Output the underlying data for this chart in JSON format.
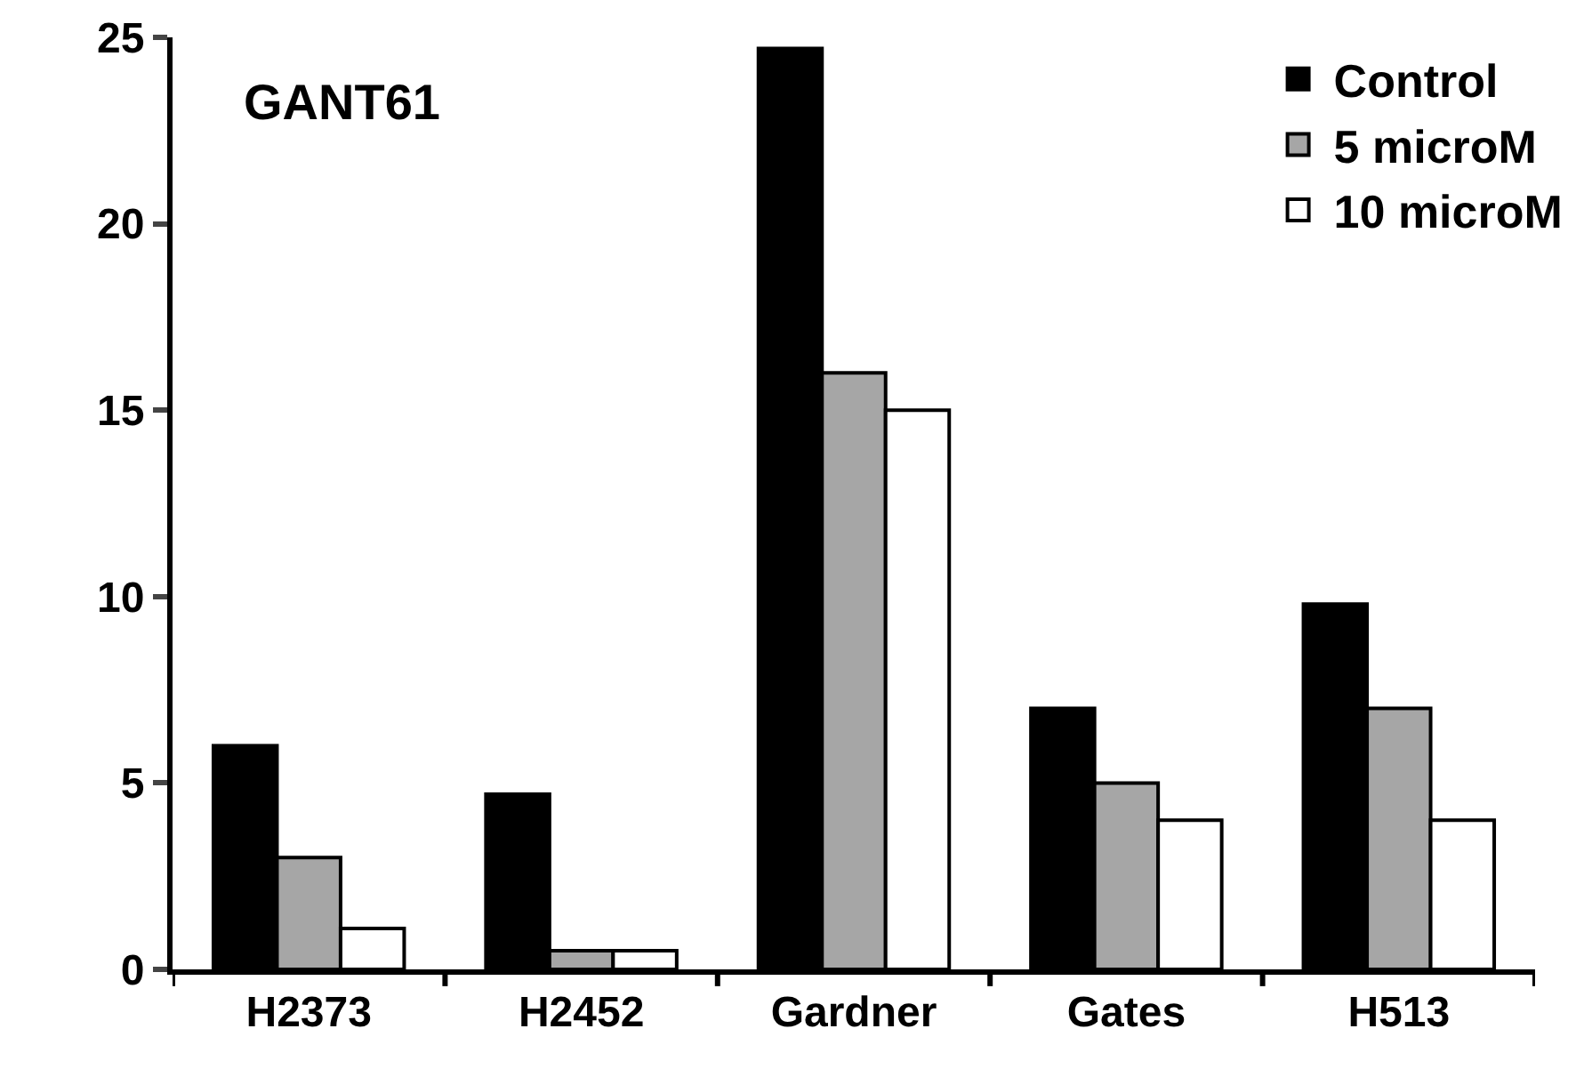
{
  "chart_data": {
    "type": "bar",
    "annotations": [
      "GANT61"
    ],
    "categories": [
      "H2373",
      "H2452",
      "Gardner",
      "Gates",
      "H513"
    ],
    "series": [
      {
        "name": "Control",
        "color": "#000000",
        "values": [
          6.0,
          4.7,
          24.7,
          7.0,
          9.8
        ]
      },
      {
        "name": "5 microM",
        "color": "#a6a6a6",
        "values": [
          3.0,
          0.5,
          16.0,
          5.0,
          7.0
        ]
      },
      {
        "name": "10 microM",
        "color": "#ffffff",
        "values": [
          1.1,
          0.5,
          15.0,
          4.0,
          4.0
        ]
      }
    ],
    "ylim": [
      0,
      25
    ],
    "yticks": [
      0,
      5,
      10,
      15,
      20,
      25
    ],
    "grid": false,
    "legend": "top right"
  }
}
